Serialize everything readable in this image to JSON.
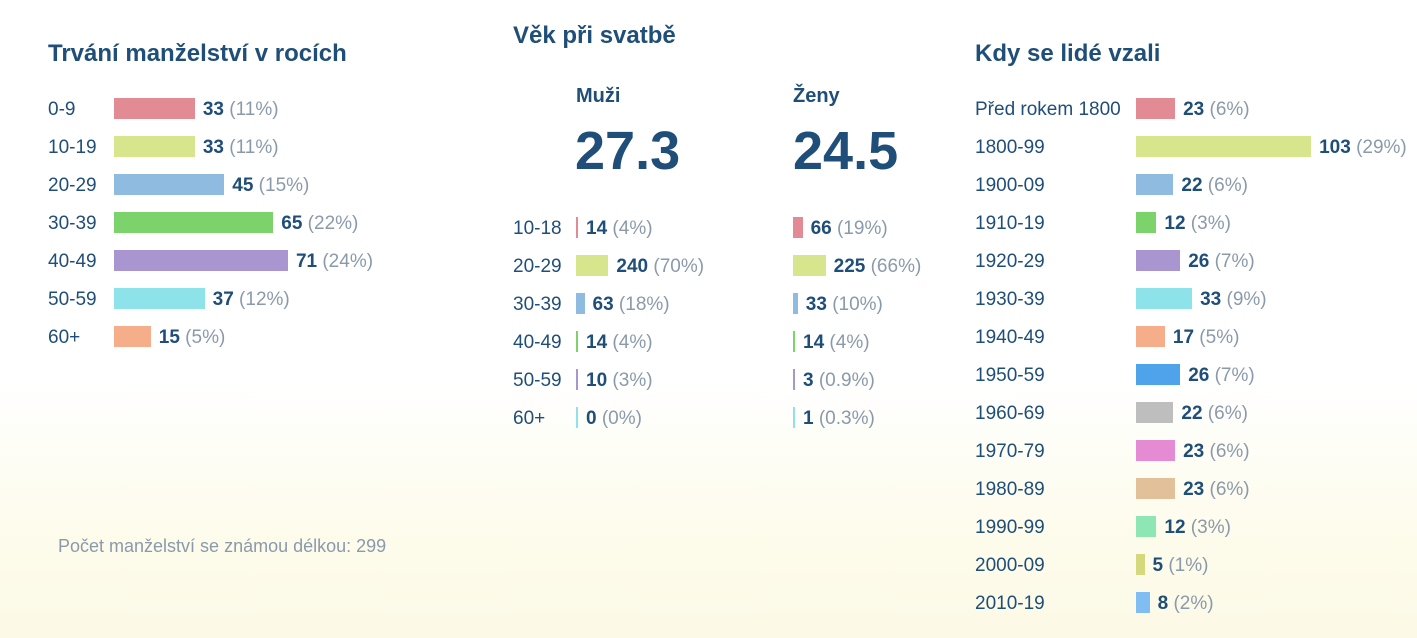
{
  "duration": {
    "title": "Trvání manželství v rocích",
    "footer": "Počet manželství se známou délkou: 299",
    "chart_data": {
      "type": "bar",
      "categories": [
        "0-9",
        "10-19",
        "20-29",
        "30-39",
        "40-49",
        "50-59",
        "60+"
      ],
      "values": [
        33,
        33,
        45,
        65,
        71,
        37,
        15
      ],
      "percent_labels": [
        "(11%)",
        "(11%)",
        "(15%)",
        "(22%)",
        "(24%)",
        "(12%)",
        "(5%)"
      ],
      "colors": [
        "#e38b95",
        "#d7e68d",
        "#8fbbe0",
        "#7dd36b",
        "#a995cf",
        "#8ee3ea",
        "#f6ad8a"
      ]
    }
  },
  "age": {
    "title": "Věk při svatbě",
    "men": {
      "heading": "Muži",
      "average": "27.3"
    },
    "women": {
      "heading": "Ženy",
      "average": "24.5"
    },
    "categories": [
      "10-18",
      "20-29",
      "30-39",
      "40-49",
      "50-59",
      "60+"
    ],
    "colors": [
      "#e38b95",
      "#d7e68d",
      "#8fbbe0",
      "#7dd36b",
      "#a995cf",
      "#8ee3ea"
    ],
    "chart_data": [
      {
        "type": "bar",
        "name": "Muži",
        "categories": [
          "10-18",
          "20-29",
          "30-39",
          "40-49",
          "50-59",
          "60+"
        ],
        "values": [
          14,
          240,
          63,
          14,
          10,
          0
        ],
        "percent_labels": [
          "(4%)",
          "(70%)",
          "(18%)",
          "(4%)",
          "(3%)",
          "(0%)"
        ]
      },
      {
        "type": "bar",
        "name": "Ženy",
        "categories": [
          "10-18",
          "20-29",
          "30-39",
          "40-49",
          "50-59",
          "60+"
        ],
        "values": [
          66,
          225,
          33,
          14,
          3,
          1
        ],
        "percent_labels": [
          "(19%)",
          "(66%)",
          "(10%)",
          "(4%)",
          "(0.9%)",
          "(0.3%)"
        ]
      }
    ]
  },
  "when": {
    "title": "Kdy se lidé vzali",
    "chart_data": {
      "type": "bar",
      "categories": [
        "Před rokem 1800",
        "1800-99",
        "1900-09",
        "1910-19",
        "1920-29",
        "1930-39",
        "1940-49",
        "1950-59",
        "1960-69",
        "1970-79",
        "1980-89",
        "1990-99",
        "2000-09",
        "2010-19"
      ],
      "values": [
        23,
        103,
        22,
        12,
        26,
        33,
        17,
        26,
        22,
        23,
        23,
        12,
        5,
        8
      ],
      "percent_labels": [
        "(6%)",
        "(29%)",
        "(6%)",
        "(3%)",
        "(7%)",
        "(9%)",
        "(5%)",
        "(7%)",
        "(6%)",
        "(6%)",
        "(6%)",
        "(3%)",
        "(1%)",
        "(2%)"
      ],
      "colors": [
        "#e38b95",
        "#d7e68d",
        "#8fbbe0",
        "#7dd36b",
        "#a995cf",
        "#8ee3ea",
        "#f6ad8a",
        "#4fa3ea",
        "#bebebe",
        "#e48bd3",
        "#e2c19a",
        "#8ee6b4",
        "#d6d87e",
        "#7fbdf2"
      ]
    }
  }
}
